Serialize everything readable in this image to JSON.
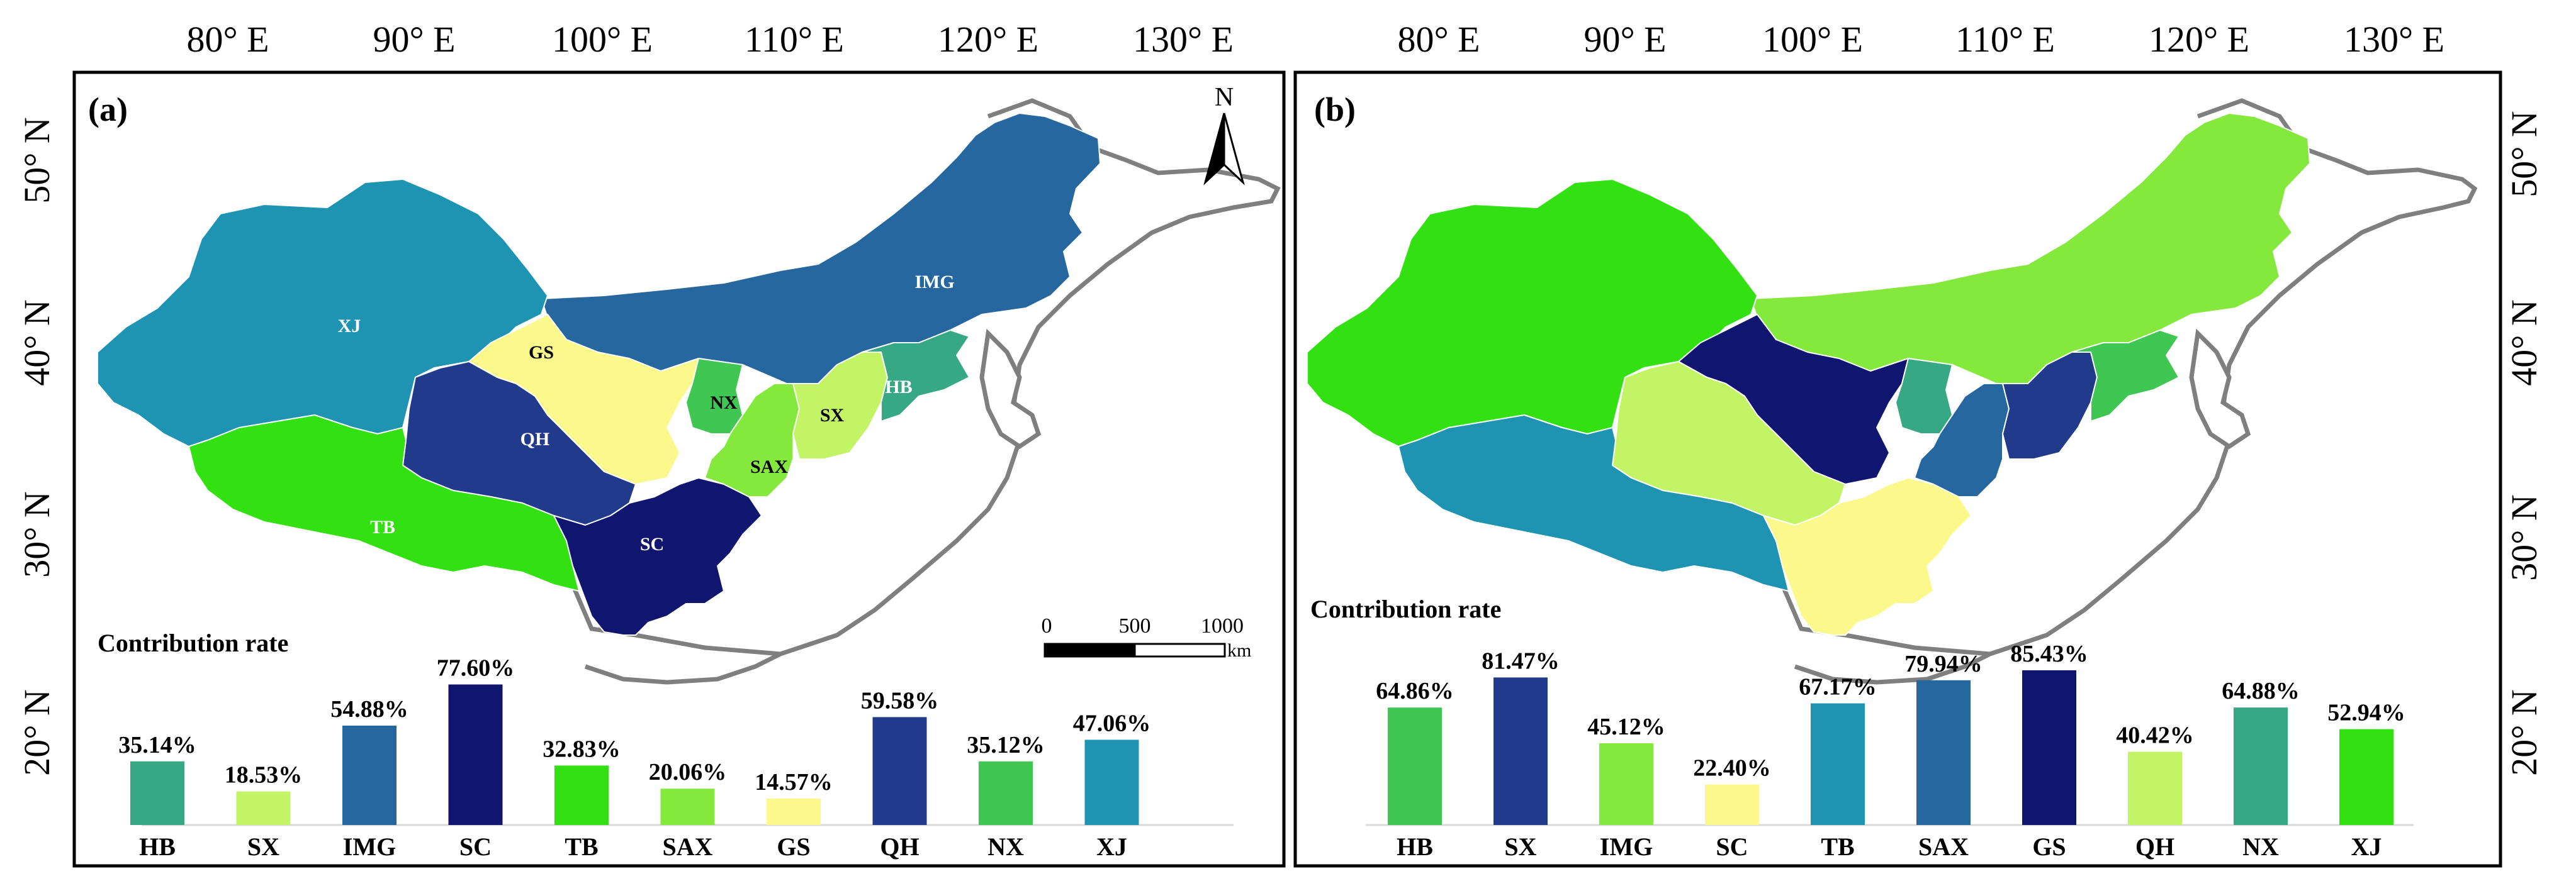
{
  "lon_labels": [
    "80° E",
    "90° E",
    "100° E",
    "110° E",
    "120° E",
    "130° E"
  ],
  "lat_labels": [
    "50° N",
    "40° N",
    "30° N",
    "20° N"
  ],
  "north_arrow": "N",
  "scale_bar": {
    "ticks": [
      "0",
      "500",
      "1000"
    ],
    "unit": "km"
  },
  "chart_title": "Contribution rate",
  "categories": [
    "HB",
    "SX",
    "IMG",
    "SC",
    "TB",
    "SAX",
    "GS",
    "QH",
    "NX",
    "XJ"
  ],
  "palette": {
    "dark_navy": "#101570",
    "navy": "#213a8c",
    "blue": "#2667a0",
    "teal": "#1f94b2",
    "sea_green": "#36a883",
    "green": "#3fc653",
    "bright_green": "#33e012",
    "lime": "#85e83d",
    "pale_lime": "#c2f466",
    "pale_yellow": "#fbf88c",
    "land_outline": "#7f7f7f",
    "frame": "#000000"
  },
  "panels": [
    {
      "id": "a",
      "label": "(a)",
      "region_labels": {
        "XJ": "XJ",
        "GS": "GS",
        "IMG": "IMG",
        "NX": "NX",
        "HB": "HB",
        "SX": "SX",
        "QH": "QH",
        "SAX": "SAX",
        "TB": "TB",
        "SC": "SC"
      },
      "region_colors": {
        "XJ": "teal",
        "IMG": "blue",
        "GS": "pale_yellow",
        "HB": "sea_green",
        "NX": "green",
        "SX": "pale_lime",
        "SAX": "lime",
        "QH": "navy",
        "TB": "bright_green",
        "SC": "dark_navy"
      },
      "chart_data": {
        "type": "bar",
        "title": "Contribution rate",
        "categories": [
          "HB",
          "SX",
          "IMG",
          "SC",
          "TB",
          "SAX",
          "GS",
          "QH",
          "NX",
          "XJ"
        ],
        "values": [
          35.14,
          18.53,
          54.88,
          77.6,
          32.83,
          20.06,
          14.57,
          59.58,
          35.12,
          47.06
        ],
        "value_labels": [
          "35.14%",
          "18.53%",
          "54.88%",
          "77.60%",
          "32.83%",
          "20.06%",
          "14.57%",
          "59.58%",
          "35.12%",
          "47.06%"
        ],
        "colors": [
          "sea_green",
          "pale_lime",
          "blue",
          "dark_navy",
          "bright_green",
          "lime",
          "pale_yellow",
          "navy",
          "green",
          "teal"
        ],
        "ylim": [
          0,
          100
        ],
        "xlabel": "",
        "ylabel": ""
      }
    },
    {
      "id": "b",
      "label": "(b)",
      "region_colors": {
        "XJ": "bright_green",
        "IMG": "lime",
        "GS": "dark_navy",
        "HB": "green",
        "NX": "sea_green",
        "SX": "navy",
        "SAX": "blue",
        "QH": "pale_lime",
        "TB": "teal",
        "SC": "pale_yellow"
      },
      "chart_data": {
        "type": "bar",
        "title": "Contribution rate",
        "categories": [
          "HB",
          "SX",
          "IMG",
          "SC",
          "TB",
          "SAX",
          "GS",
          "QH",
          "NX",
          "XJ"
        ],
        "values": [
          64.86,
          81.47,
          45.12,
          22.4,
          67.17,
          79.94,
          85.43,
          40.42,
          64.88,
          52.94
        ],
        "value_labels": [
          "64.86%",
          "81.47%",
          "45.12%",
          "22.40%",
          "67.17%",
          "79.94%",
          "85.43%",
          "40.42%",
          "64.88%",
          "52.94%"
        ],
        "colors": [
          "green",
          "navy",
          "lime",
          "pale_yellow",
          "teal",
          "blue",
          "dark_navy",
          "pale_lime",
          "sea_green",
          "bright_green"
        ],
        "ylim": [
          0,
          100
        ],
        "xlabel": "",
        "ylabel": ""
      }
    }
  ]
}
